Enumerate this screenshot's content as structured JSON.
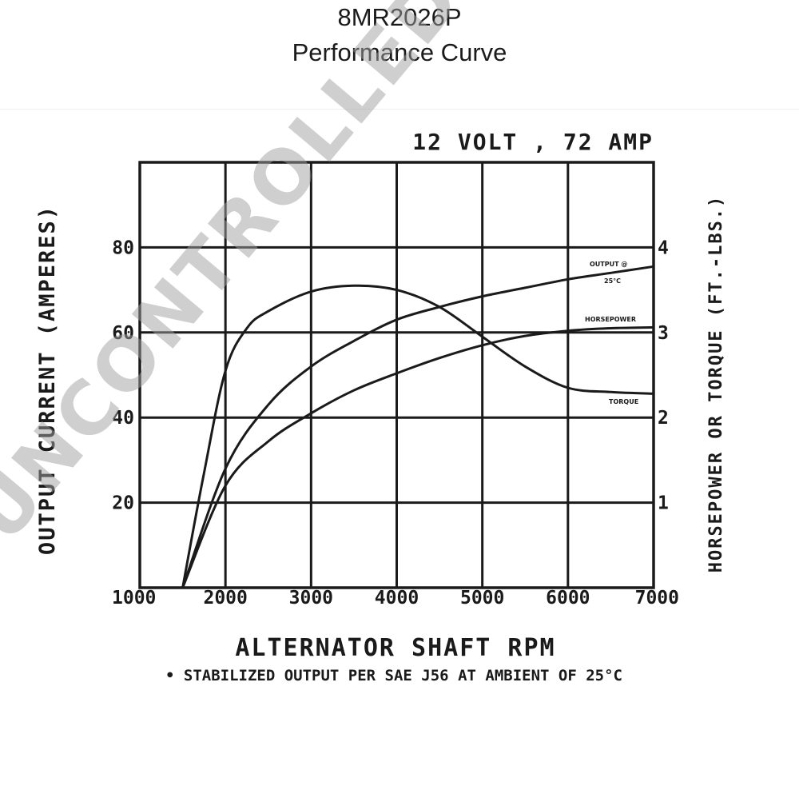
{
  "header": {
    "part_number": "8MR2026P",
    "title": "Performance Curve"
  },
  "watermark": "UNCONTROLLED COPY",
  "chart_data": {
    "type": "line",
    "title": "12 VOLT , 72 AMP",
    "xlabel": "ALTERNATOR SHAFT RPM",
    "ylabel": "OUTPUT CURRENT (AMPERES)",
    "y2label": "HORSEPOWER OR TORQUE (FT.-LBS.)",
    "footnote": "• STABILIZED OUTPUT PER SAE J56 AT AMBIENT OF 25°C",
    "xlim": [
      1000,
      7000
    ],
    "ylim": [
      0,
      100
    ],
    "y2lim": [
      0,
      5
    ],
    "grid": true,
    "x_ticks": [
      1000,
      2000,
      3000,
      4000,
      5000,
      6000,
      7000
    ],
    "x_tick_labels": [
      "1000",
      "2000",
      "3000",
      "4000",
      "5000",
      "6000",
      "7000"
    ],
    "y_ticks": [
      20,
      40,
      60,
      80
    ],
    "y_tick_labels": [
      "20",
      "40",
      "60",
      "80"
    ],
    "y2_ticks": [
      1,
      2,
      3,
      4
    ],
    "y2_tick_labels": [
      "1",
      "2",
      "3",
      "4"
    ],
    "series": [
      {
        "name": "OUTPUT @ 25°C",
        "axis": "left",
        "x": [
          1500,
          2000,
          2500,
          3000,
          3500,
          4000,
          4500,
          5000,
          5500,
          6000,
          6500,
          7000
        ],
        "values": [
          0,
          28,
          43,
          52,
          58,
          63,
          66,
          68.5,
          70.5,
          72.5,
          74,
          75.5
        ]
      },
      {
        "name": "HORSEPOWER",
        "axis": "right",
        "x": [
          1500,
          2000,
          2500,
          3000,
          3500,
          4000,
          4500,
          5000,
          5500,
          6000,
          6500,
          7000
        ],
        "values": [
          0,
          1.2,
          1.72,
          2.05,
          2.32,
          2.52,
          2.7,
          2.85,
          2.96,
          3.02,
          3.05,
          3.06
        ]
      },
      {
        "name": "TORQUE",
        "axis": "right",
        "x": [
          1500,
          1750,
          2000,
          2250,
          2500,
          3000,
          3500,
          4000,
          4500,
          5000,
          5500,
          6000,
          6500,
          7000
        ],
        "values": [
          0,
          1.35,
          2.55,
          3.05,
          3.25,
          3.48,
          3.55,
          3.5,
          3.3,
          2.95,
          2.6,
          2.35,
          2.3,
          2.28
        ]
      }
    ]
  }
}
